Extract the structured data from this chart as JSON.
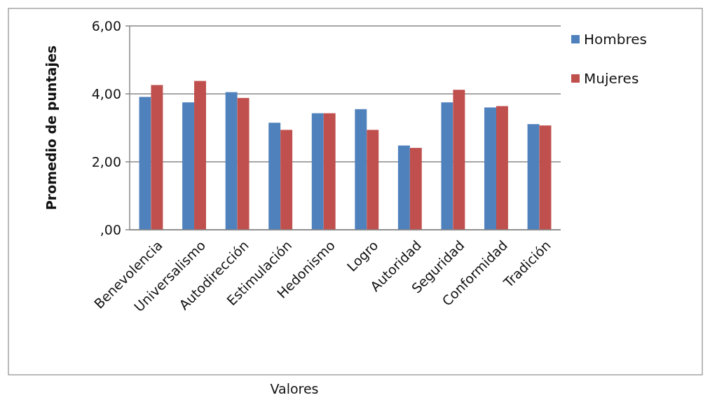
{
  "chart_data": {
    "type": "bar",
    "xlabel": "Valores",
    "ylabel": "Promedio de puntajes",
    "categories": [
      "Benevolencia",
      "Universalismo",
      "Autodirección",
      "Estimulación",
      "Hedonismo",
      "Logro",
      "Autoridad",
      "Seguridad",
      "Conformidad",
      "Tradición"
    ],
    "series": [
      {
        "name": "Hombres",
        "color": "#4f81bd",
        "values": [
          3.91,
          3.75,
          4.05,
          3.15,
          3.43,
          3.55,
          2.48,
          3.75,
          3.6,
          3.11
        ]
      },
      {
        "name": "Mujeres",
        "color": "#c0504d",
        "values": [
          4.26,
          4.38,
          3.88,
          2.94,
          3.43,
          2.94,
          2.41,
          4.12,
          3.64,
          3.07
        ]
      }
    ],
    "ylim": [
      0,
      6
    ],
    "yticks": [
      {
        "value": 0,
        "label": ",00"
      },
      {
        "value": 2,
        "label": "2,00"
      },
      {
        "value": 4,
        "label": "4,00"
      },
      {
        "value": 6,
        "label": "6,00"
      }
    ],
    "grid": "y",
    "legend": "top right"
  }
}
